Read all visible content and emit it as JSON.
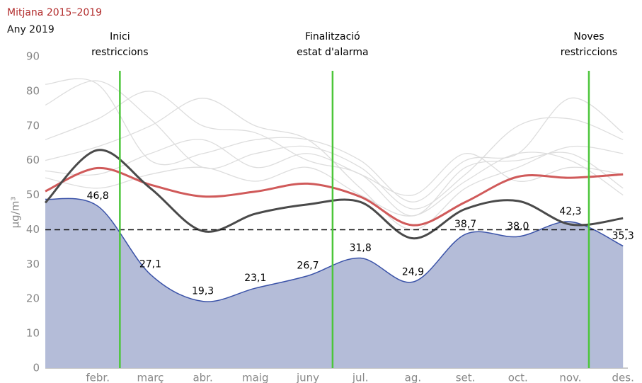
{
  "chart_data": {
    "type": "line",
    "y_label": "µg/m³",
    "categories": [
      null,
      "febr.",
      "març",
      "abr.",
      "maig",
      "juny",
      "jul.",
      "ag.",
      "set.",
      "oct.",
      "nov.",
      "des."
    ],
    "ylim": [
      0,
      90
    ],
    "yticks": [
      0,
      10,
      20,
      30,
      40,
      50,
      60,
      70,
      80,
      90
    ],
    "reference": 40,
    "series": [
      {
        "style": "area",
        "color": "#3a52a8",
        "fill": "#b4bcd8",
        "values": [
          48.8,
          46.8,
          27.1,
          19.3,
          23.1,
          26.7,
          31.8,
          24.9,
          38.7,
          38.0,
          42.3,
          35.3
        ],
        "value_labels": [
          null,
          "46,8",
          "27,1",
          "19,3",
          "23,1",
          "26,7",
          "31,8",
          "24,9",
          "38,7",
          "38,0",
          "42,3",
          "35,3"
        ]
      },
      {
        "style": "line",
        "color": "#dddddd",
        "values": [
          82,
          82,
          60,
          62,
          66,
          66,
          60,
          48,
          60,
          62,
          78,
          68
        ]
      },
      {
        "style": "line",
        "color": "#dddddd",
        "values": [
          76,
          83,
          72,
          58,
          62,
          64,
          58,
          46,
          56,
          70,
          72,
          66
        ]
      },
      {
        "style": "line",
        "color": "#dddddd",
        "values": [
          66,
          72,
          80,
          70,
          68,
          60,
          56,
          44,
          58,
          60,
          62,
          52
        ]
      },
      {
        "style": "line",
        "color": "#dddddd",
        "values": [
          60,
          64,
          70,
          78,
          70,
          66,
          52,
          40,
          52,
          58,
          64,
          62
        ]
      },
      {
        "style": "line",
        "color": "#dddddd",
        "values": [
          57,
          56,
          62,
          66,
          58,
          62,
          56,
          50,
          62,
          54,
          58,
          56
        ]
      },
      {
        "style": "line",
        "color": "#dddddd",
        "values": [
          55,
          52,
          56,
          58,
          54,
          58,
          50,
          44,
          54,
          62,
          60,
          50
        ]
      },
      {
        "name": "Mitjana 2015–2019",
        "style": "line",
        "color": "#d05a5a",
        "values": [
          51.1,
          57.8,
          53.0,
          49.6,
          51.0,
          53.3,
          49.5,
          41.3,
          48.0,
          55.3,
          55.0,
          56.0
        ]
      },
      {
        "name": "Any 2019",
        "style": "line",
        "color": "#4a4a4a",
        "values": [
          47.8,
          63.0,
          52.0,
          39.6,
          44.6,
          47.3,
          48.0,
          37.5,
          46.0,
          48.3,
          41.5,
          43.3
        ]
      }
    ],
    "annotations": [
      {
        "at": 1.42,
        "text": [
          "Inici",
          "restriccions"
        ]
      },
      {
        "at": 5.47,
        "text": [
          "Finalització",
          "estat d'alarma"
        ]
      },
      {
        "at": 10.35,
        "text": [
          "Noves",
          "restriccions"
        ]
      }
    ],
    "annotation_color": "#4cc63a"
  }
}
